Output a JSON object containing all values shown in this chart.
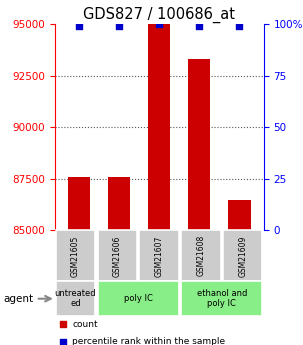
{
  "title": "GDS827 / 100686_at",
  "samples": [
    "GSM21605",
    "GSM21606",
    "GSM21607",
    "GSM21608",
    "GSM21609"
  ],
  "counts": [
    87600,
    87600,
    95000,
    93300,
    86500
  ],
  "percentiles": [
    99,
    99,
    100,
    99,
    99
  ],
  "ylim_left": [
    85000,
    95000
  ],
  "yticks_left": [
    85000,
    87500,
    90000,
    92500,
    95000
  ],
  "ylim_right": [
    0,
    100
  ],
  "yticks_right": [
    0,
    25,
    50,
    75,
    100
  ],
  "bar_color": "#cc0000",
  "perc_color": "#0000cc",
  "groups": [
    {
      "label": "untreated\ned",
      "start": 0,
      "end": 1,
      "color": "#cccccc"
    },
    {
      "label": "poly IC",
      "start": 1,
      "end": 3,
      "color": "#88ee88"
    },
    {
      "label": "ethanol and\npoly IC",
      "start": 3,
      "end": 5,
      "color": "#88ee88"
    }
  ],
  "agent_label": "agent",
  "legend_count_label": "count",
  "legend_perc_label": "percentile rank within the sample",
  "bar_width": 0.55,
  "grid_color": "#555555",
  "tick_fontsize": 7.5,
  "title_fontsize": 10.5,
  "sample_bg_color": "#cccccc"
}
